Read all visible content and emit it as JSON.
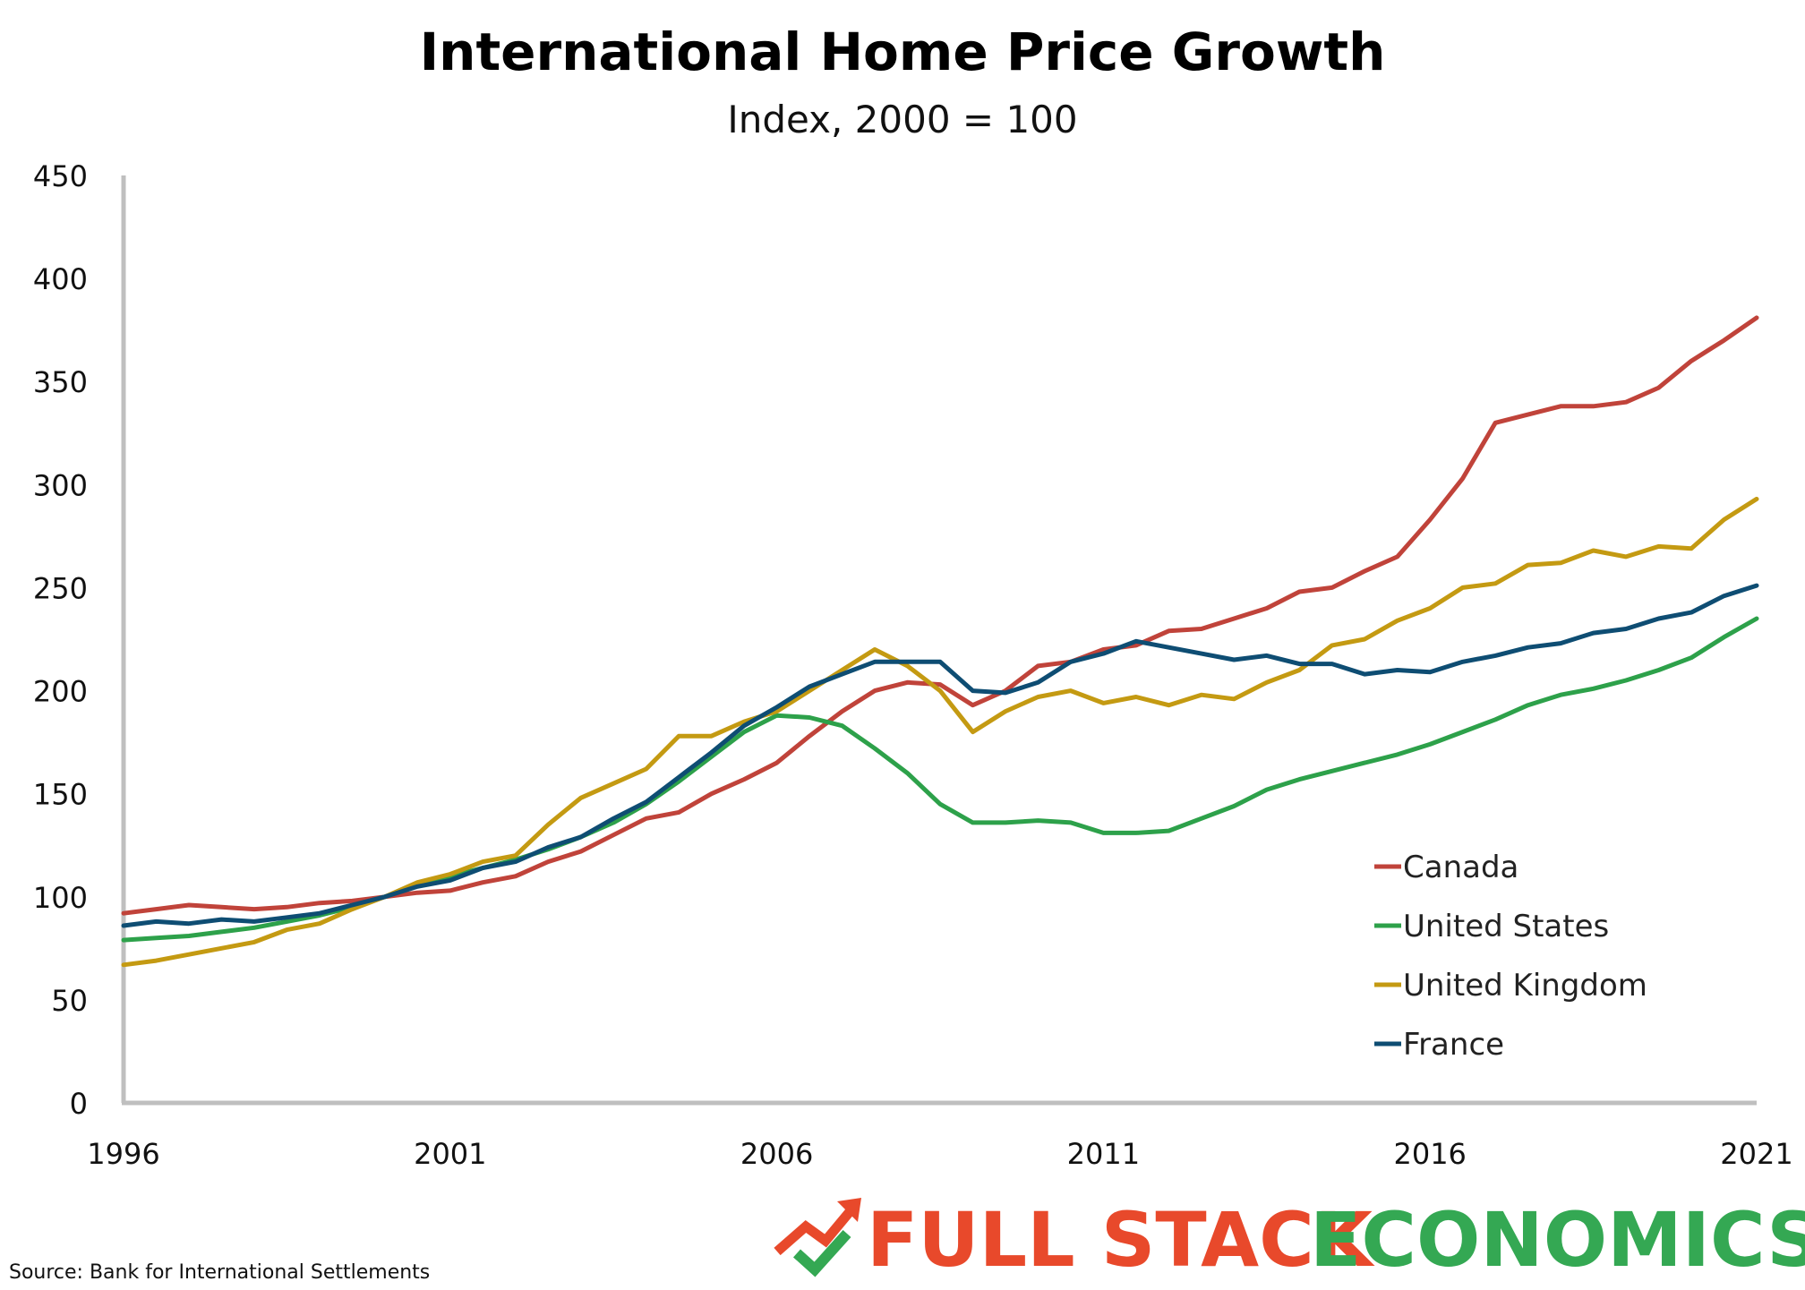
{
  "chart_data": {
    "type": "line",
    "title": "International Home Price Growth",
    "subtitle": "Index, 2000 = 100",
    "xlim": [
      1996,
      2021
    ],
    "ylim": [
      0,
      450
    ],
    "x_ticks": [
      "1996",
      "2001",
      "2006",
      "2011",
      "2016",
      "2021"
    ],
    "y_ticks": [
      "0",
      "50",
      "100",
      "150",
      "200",
      "250",
      "300",
      "350",
      "400",
      "450"
    ],
    "grid": false,
    "legend_position": "bottom-right",
    "series": [
      {
        "name": "Canada",
        "color": "#c0433a",
        "points": [
          [
            1996,
            92
          ],
          [
            1996.5,
            94
          ],
          [
            1997,
            96
          ],
          [
            1997.5,
            95
          ],
          [
            1998,
            94
          ],
          [
            1998.5,
            95
          ],
          [
            1999,
            97
          ],
          [
            1999.5,
            98
          ],
          [
            2000,
            100
          ],
          [
            2000.5,
            102
          ],
          [
            2001,
            103
          ],
          [
            2001.5,
            107
          ],
          [
            2002,
            110
          ],
          [
            2002.5,
            117
          ],
          [
            2003,
            122
          ],
          [
            2003.5,
            130
          ],
          [
            2004,
            138
          ],
          [
            2004.5,
            141
          ],
          [
            2005,
            150
          ],
          [
            2005.5,
            157
          ],
          [
            2006,
            165
          ],
          [
            2006.5,
            178
          ],
          [
            2007,
            190
          ],
          [
            2007.5,
            200
          ],
          [
            2008,
            204
          ],
          [
            2008.5,
            203
          ],
          [
            2009,
            193
          ],
          [
            2009.5,
            200
          ],
          [
            2010,
            212
          ],
          [
            2010.5,
            214
          ],
          [
            2011,
            220
          ],
          [
            2011.5,
            222
          ],
          [
            2012,
            229
          ],
          [
            2012.5,
            230
          ],
          [
            2013,
            235
          ],
          [
            2013.5,
            240
          ],
          [
            2014,
            248
          ],
          [
            2014.5,
            250
          ],
          [
            2015,
            258
          ],
          [
            2015.5,
            265
          ],
          [
            2016,
            283
          ],
          [
            2016.5,
            303
          ],
          [
            2017,
            330
          ],
          [
            2017.5,
            334
          ],
          [
            2018,
            338
          ],
          [
            2018.5,
            338
          ],
          [
            2019,
            340
          ],
          [
            2019.5,
            347
          ],
          [
            2020,
            360
          ],
          [
            2020.5,
            370
          ],
          [
            2021,
            381
          ]
        ]
      },
      {
        "name": "United States",
        "color": "#2da14a",
        "points": [
          [
            1996,
            79
          ],
          [
            1996.5,
            80
          ],
          [
            1997,
            81
          ],
          [
            1997.5,
            83
          ],
          [
            1998,
            85
          ],
          [
            1998.5,
            88
          ],
          [
            1999,
            91
          ],
          [
            1999.5,
            95
          ],
          [
            2000,
            100
          ],
          [
            2000.5,
            106
          ],
          [
            2001,
            110
          ],
          [
            2001.5,
            114
          ],
          [
            2002,
            118
          ],
          [
            2002.5,
            123
          ],
          [
            2003,
            129
          ],
          [
            2003.5,
            136
          ],
          [
            2004,
            145
          ],
          [
            2004.5,
            156
          ],
          [
            2005,
            168
          ],
          [
            2005.5,
            180
          ],
          [
            2006,
            188
          ],
          [
            2006.5,
            187
          ],
          [
            2007,
            183
          ],
          [
            2007.5,
            172
          ],
          [
            2008,
            160
          ],
          [
            2008.5,
            145
          ],
          [
            2009,
            136
          ],
          [
            2009.5,
            136
          ],
          [
            2010,
            137
          ],
          [
            2010.5,
            136
          ],
          [
            2011,
            131
          ],
          [
            2011.5,
            131
          ],
          [
            2012,
            132
          ],
          [
            2012.5,
            138
          ],
          [
            2013,
            144
          ],
          [
            2013.5,
            152
          ],
          [
            2014,
            157
          ],
          [
            2014.5,
            161
          ],
          [
            2015,
            165
          ],
          [
            2015.5,
            169
          ],
          [
            2016,
            174
          ],
          [
            2016.5,
            180
          ],
          [
            2017,
            186
          ],
          [
            2017.5,
            193
          ],
          [
            2018,
            198
          ],
          [
            2018.5,
            201
          ],
          [
            2019,
            205
          ],
          [
            2019.5,
            210
          ],
          [
            2020,
            216
          ],
          [
            2020.5,
            226
          ],
          [
            2021,
            235
          ]
        ]
      },
      {
        "name": "United Kingdom",
        "color": "#c49a12",
        "points": [
          [
            1996,
            67
          ],
          [
            1996.5,
            69
          ],
          [
            1997,
            72
          ],
          [
            1997.5,
            75
          ],
          [
            1998,
            78
          ],
          [
            1998.5,
            84
          ],
          [
            1999,
            87
          ],
          [
            1999.5,
            94
          ],
          [
            2000,
            100
          ],
          [
            2000.5,
            107
          ],
          [
            2001,
            111
          ],
          [
            2001.5,
            117
          ],
          [
            2002,
            120
          ],
          [
            2002.5,
            135
          ],
          [
            2003,
            148
          ],
          [
            2003.5,
            155
          ],
          [
            2004,
            162
          ],
          [
            2004.5,
            178
          ],
          [
            2005,
            178
          ],
          [
            2005.5,
            185
          ],
          [
            2006,
            190
          ],
          [
            2006.5,
            200
          ],
          [
            2007,
            210
          ],
          [
            2007.5,
            220
          ],
          [
            2008,
            212
          ],
          [
            2008.5,
            200
          ],
          [
            2009,
            180
          ],
          [
            2009.5,
            190
          ],
          [
            2010,
            197
          ],
          [
            2010.5,
            200
          ],
          [
            2011,
            194
          ],
          [
            2011.5,
            197
          ],
          [
            2012,
            193
          ],
          [
            2012.5,
            198
          ],
          [
            2013,
            196
          ],
          [
            2013.5,
            204
          ],
          [
            2014,
            210
          ],
          [
            2014.5,
            222
          ],
          [
            2015,
            225
          ],
          [
            2015.5,
            234
          ],
          [
            2016,
            240
          ],
          [
            2016.5,
            250
          ],
          [
            2017,
            252
          ],
          [
            2017.5,
            261
          ],
          [
            2018,
            262
          ],
          [
            2018.5,
            268
          ],
          [
            2019,
            265
          ],
          [
            2019.5,
            270
          ],
          [
            2020,
            269
          ],
          [
            2020.5,
            283
          ],
          [
            2021,
            293
          ]
        ]
      },
      {
        "name": "France",
        "color": "#0e4d73",
        "points": [
          [
            1996,
            86
          ],
          [
            1996.5,
            88
          ],
          [
            1997,
            87
          ],
          [
            1997.5,
            89
          ],
          [
            1998,
            88
          ],
          [
            1998.5,
            90
          ],
          [
            1999,
            92
          ],
          [
            1999.5,
            96
          ],
          [
            2000,
            100
          ],
          [
            2000.5,
            105
          ],
          [
            2001,
            108
          ],
          [
            2001.5,
            114
          ],
          [
            2002,
            117
          ],
          [
            2002.5,
            124
          ],
          [
            2003,
            129
          ],
          [
            2003.5,
            138
          ],
          [
            2004,
            146
          ],
          [
            2004.5,
            158
          ],
          [
            2005,
            170
          ],
          [
            2005.5,
            183
          ],
          [
            2006,
            192
          ],
          [
            2006.5,
            202
          ],
          [
            2007,
            208
          ],
          [
            2007.5,
            214
          ],
          [
            2008,
            214
          ],
          [
            2008.5,
            214
          ],
          [
            2009,
            200
          ],
          [
            2009.5,
            199
          ],
          [
            2010,
            204
          ],
          [
            2010.5,
            214
          ],
          [
            2011,
            218
          ],
          [
            2011.5,
            224
          ],
          [
            2012,
            221
          ],
          [
            2012.5,
            218
          ],
          [
            2013,
            215
          ],
          [
            2013.5,
            217
          ],
          [
            2014,
            213
          ],
          [
            2014.5,
            213
          ],
          [
            2015,
            208
          ],
          [
            2015.5,
            210
          ],
          [
            2016,
            209
          ],
          [
            2016.5,
            214
          ],
          [
            2017,
            217
          ],
          [
            2017.5,
            221
          ],
          [
            2018,
            223
          ],
          [
            2018.5,
            228
          ],
          [
            2019,
            230
          ],
          [
            2019.5,
            235
          ],
          [
            2020,
            238
          ],
          [
            2020.5,
            246
          ],
          [
            2021,
            251
          ]
        ]
      }
    ]
  },
  "source": "Source: Bank for International Settlements",
  "brand": {
    "word1": "FULL STACK",
    "word2": "ECONOMICS",
    "logo_icon": "trend-check-icon"
  }
}
